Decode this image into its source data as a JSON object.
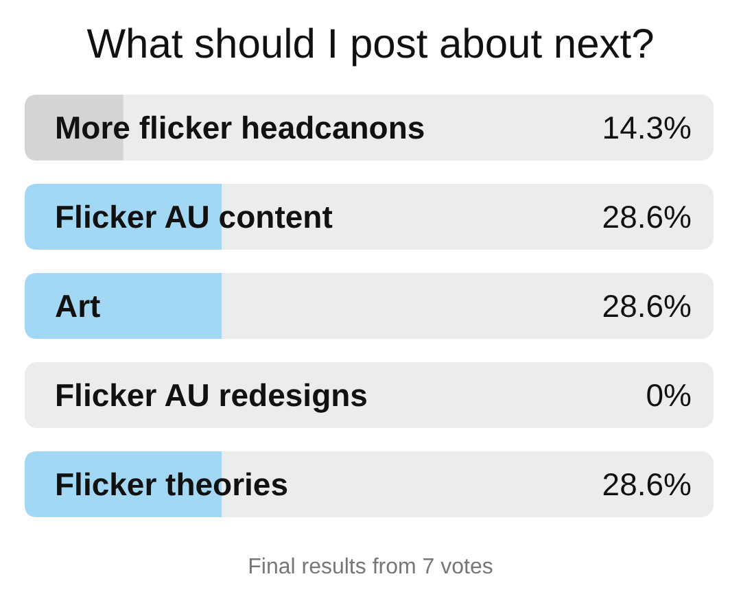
{
  "chart_data": {
    "type": "bar",
    "orientation": "horizontal",
    "title": "What should I post about next?",
    "categories": [
      "More flicker headcanons",
      "Flicker AU content",
      "Art",
      "Flicker AU redesigns",
      "Flicker theories"
    ],
    "values": [
      14.3,
      28.6,
      28.6,
      0,
      28.6
    ],
    "colors": [
      "#d4d4d4",
      "#a3d8f4",
      "#a3d8f4",
      "#d4d4d4",
      "#a3d8f4"
    ],
    "value_labels": [
      "14.3%",
      "28.6%",
      "28.6%",
      "0%",
      "28.6%"
    ],
    "xlim": [
      0,
      100
    ],
    "annotations": [
      "Final results from 7 votes"
    ]
  }
}
